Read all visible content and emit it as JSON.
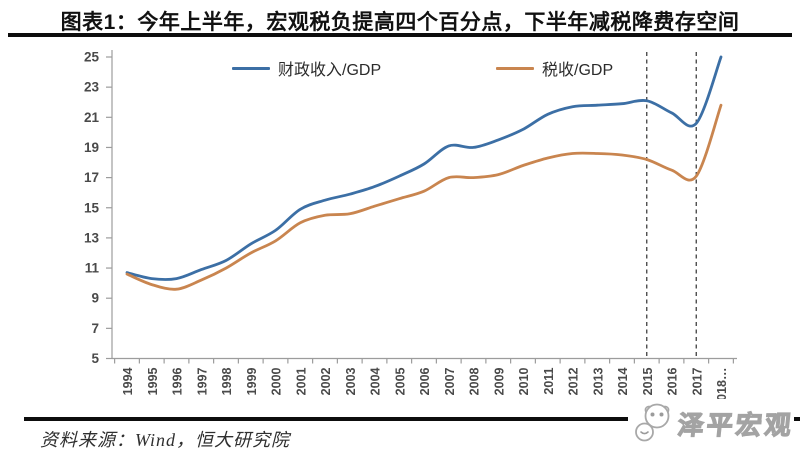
{
  "figure": {
    "title": "图表1：今年上半年，宏观税负提高四个百分点，下半年减税降费存空间"
  },
  "chart_data": {
    "type": "line",
    "title": "图表1：今年上半年，宏观税负提高四个百分点，下半年减税降费存空间",
    "xlabel": "",
    "ylabel": "",
    "ylim": [
      5,
      25
    ],
    "yticks": [
      5,
      7,
      9,
      11,
      13,
      15,
      17,
      19,
      21,
      23,
      25
    ],
    "grid": false,
    "legend_position": "top",
    "categories": [
      1994,
      1995,
      1996,
      1997,
      1998,
      1999,
      2000,
      2001,
      2002,
      2003,
      2004,
      2005,
      2006,
      2007,
      2008,
      2009,
      2010,
      2011,
      2012,
      2013,
      2014,
      2015,
      2016,
      2017,
      2018
    ],
    "xtick_labels": [
      "1994",
      "1995",
      "1996",
      "1997",
      "1998",
      "1999",
      "2000",
      "2001",
      "2002",
      "2003",
      "2004",
      "2005",
      "2006",
      "2007",
      "2008",
      "2009",
      "2010",
      "2011",
      "2012",
      "2013",
      "2014",
      "2015",
      "2016",
      "2017",
      "2018…"
    ],
    "series": [
      {
        "name": "财政收入/GDP",
        "color": "#3c6fa5",
        "values": [
          10.7,
          10.3,
          10.3,
          10.9,
          11.5,
          12.6,
          13.5,
          14.9,
          15.5,
          15.9,
          16.4,
          17.1,
          17.9,
          19.1,
          19.0,
          19.5,
          20.2,
          21.2,
          21.7,
          21.8,
          21.9,
          22.1,
          21.3,
          20.6,
          25.0
        ]
      },
      {
        "name": "税收/GDP",
        "color": "#c9854f",
        "values": [
          10.6,
          9.9,
          9.6,
          10.2,
          11.0,
          12.0,
          12.8,
          14.0,
          14.5,
          14.6,
          15.1,
          15.6,
          16.1,
          17.0,
          17.0,
          17.2,
          17.8,
          18.3,
          18.6,
          18.6,
          18.5,
          18.2,
          17.5,
          17.1,
          21.8
        ]
      }
    ],
    "annotations": {
      "dashed_vlines_years": [
        2015,
        2017
      ]
    },
    "axis_color": "#9c9c9c",
    "tick_label_color": "#4a4a4a",
    "dashed_line_color": "#3f3f3f"
  },
  "footer": {
    "source": "资料来源：Wind，恒大研究院",
    "brand": "泽平宏观"
  }
}
